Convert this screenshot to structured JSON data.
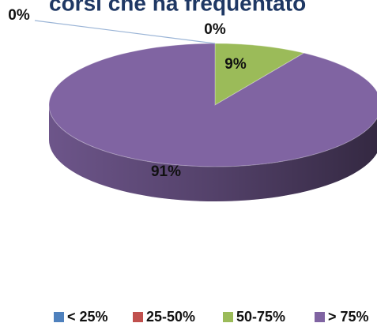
{
  "chart_data": {
    "type": "pie",
    "title": "corsi che ha frequentato",
    "categories": [
      "< 25%",
      "25-50%",
      "50-75%",
      "> 75%"
    ],
    "values": [
      0,
      0,
      9,
      91
    ],
    "value_labels": [
      "0%",
      "0%",
      "9%",
      "91%"
    ],
    "colors": [
      "#4f81bd",
      "#c0504d",
      "#9bbb59",
      "#8064a2"
    ],
    "legend": "bottom"
  }
}
